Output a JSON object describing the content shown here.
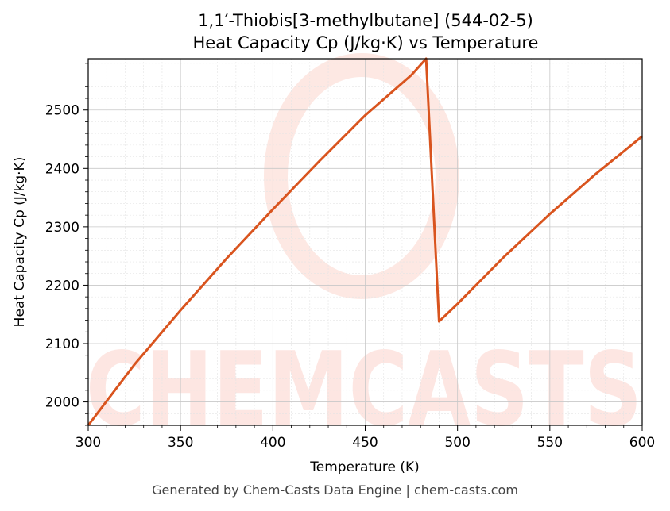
{
  "chart_data": {
    "type": "line",
    "title": "1,1′-Thiobis[3-methylbutane] (544-02-5)",
    "subtitle": "Heat Capacity Cp (J/kg·K) vs Temperature",
    "xlabel": "Temperature (K)",
    "ylabel": "Heat Capacity Cp (J/kg·K)",
    "xlim": [
      300,
      600
    ],
    "ylim": [
      1960,
      2588
    ],
    "x_ticks": [
      300,
      350,
      400,
      450,
      500,
      550,
      600
    ],
    "y_ticks": [
      2000,
      2100,
      2200,
      2300,
      2400,
      2500
    ],
    "grid": true,
    "line_color": "#d9541e",
    "watermark": "CHEMCASTS",
    "series": [
      {
        "x": [
          300,
          325,
          350,
          375,
          400,
          425,
          450,
          475,
          483,
          490,
          500,
          525,
          550,
          575,
          600
        ],
        "y": [
          1960,
          2064,
          2157,
          2246,
          2330,
          2412,
          2491,
          2560,
          2588,
          2138,
          2168,
          2248,
          2322,
          2391,
          2455
        ]
      }
    ]
  },
  "footer": "Generated by Chem-Casts Data Engine | chem-casts.com"
}
